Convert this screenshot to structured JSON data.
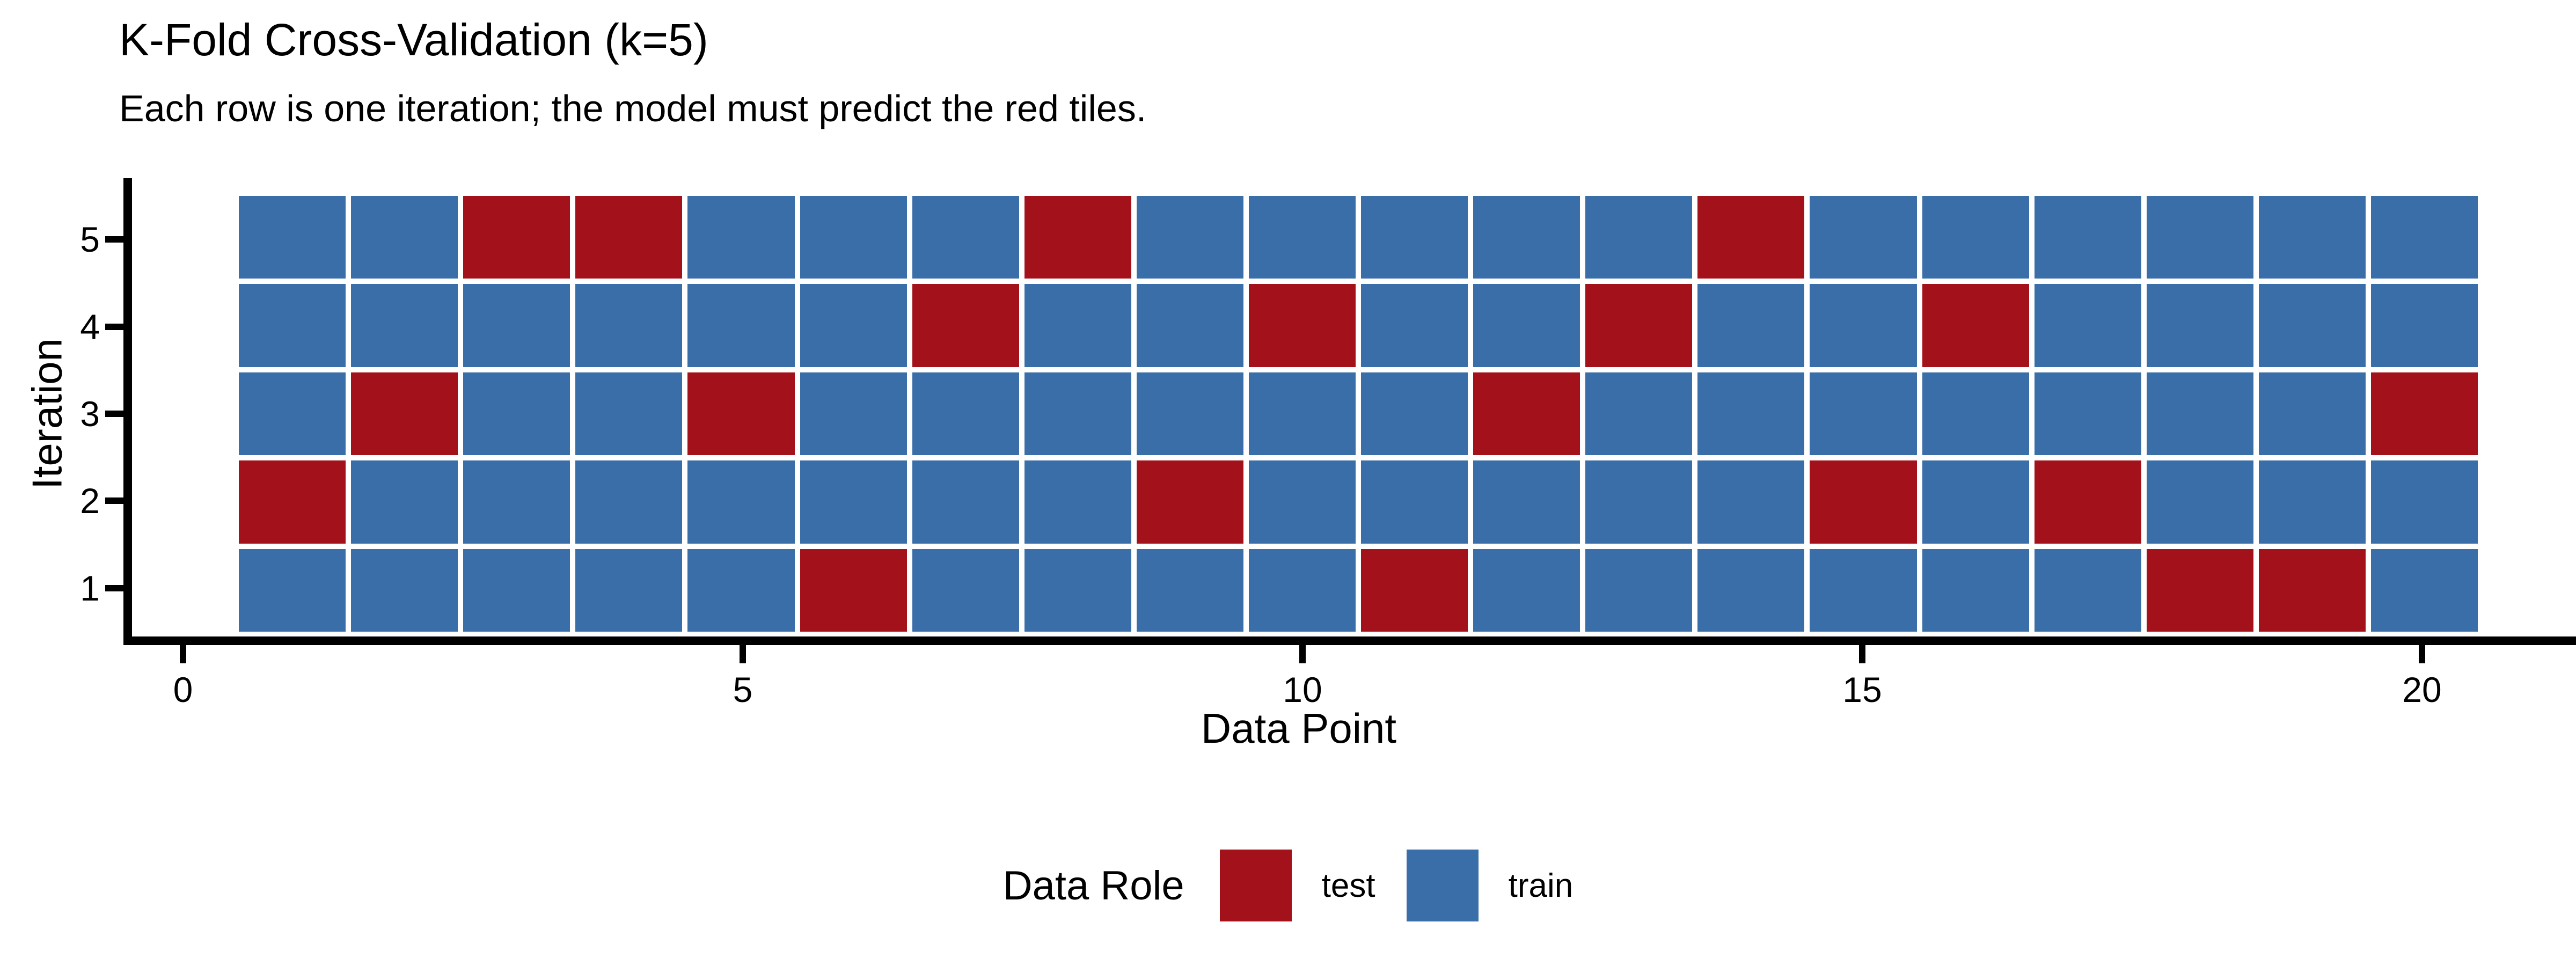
{
  "chart_data": {
    "type": "heatmap",
    "title": "K-Fold Cross-Validation (k=5)",
    "subtitle": "Each row is one iteration; the model must predict the red tiles.",
    "xlabel": "Data Point",
    "ylabel": "Iteration",
    "k": 5,
    "n_points": 20,
    "x_axis": {
      "tick_labels": [
        "0",
        "5",
        "10",
        "15",
        "20"
      ],
      "tick_values": [
        0,
        5,
        10,
        15,
        20
      ],
      "range": [
        -0.5,
        20.5
      ]
    },
    "y_axis": {
      "tick_labels": [
        "5",
        "4",
        "3",
        "2",
        "1"
      ],
      "tick_values": [
        5,
        4,
        3,
        2,
        1
      ]
    },
    "rows": [
      {
        "iteration": 5,
        "test_points": [
          3,
          4,
          8,
          14
        ]
      },
      {
        "iteration": 4,
        "test_points": [
          7,
          10,
          13,
          16
        ]
      },
      {
        "iteration": 3,
        "test_points": [
          2,
          5,
          12,
          20
        ]
      },
      {
        "iteration": 2,
        "test_points": [
          1,
          9,
          15,
          17
        ]
      },
      {
        "iteration": 1,
        "test_points": [
          6,
          11,
          18,
          19
        ]
      }
    ],
    "colors": {
      "test": "#A3121B",
      "train": "#3A6EA8",
      "axis": "#000000",
      "background": "#FFFFFF"
    },
    "legend": {
      "title": "Data Role",
      "items": [
        {
          "label": "test",
          "role": "test",
          "color": "#A3121B"
        },
        {
          "label": "train",
          "role": "train",
          "color": "#3A6EA8"
        }
      ],
      "position": "bottom"
    },
    "layout_hints": {
      "grid": "off",
      "tile_border": "white",
      "rows_top_to_bottom": [
        5,
        4,
        3,
        2,
        1
      ]
    }
  }
}
